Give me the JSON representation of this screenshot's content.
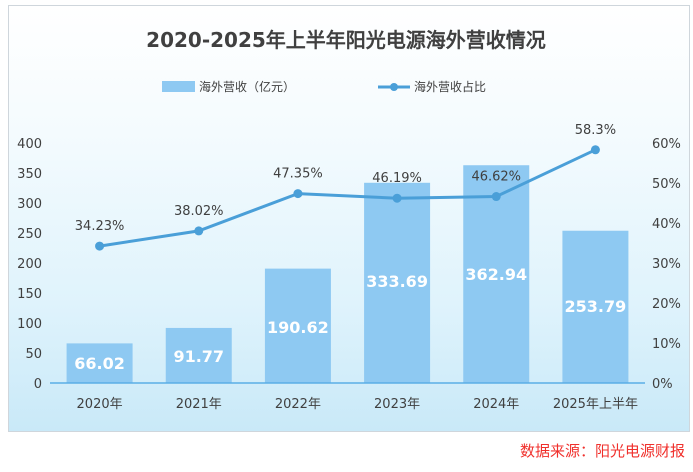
{
  "chart_data": {
    "type": "bar+line",
    "title": "2020-2025年上半年阳光电源海外营收情况",
    "categories": [
      "2020年",
      "2021年",
      "2022年",
      "2023年",
      "2024年",
      "2025年上半年"
    ],
    "series": [
      {
        "name": "海外营收（亿元）",
        "type": "bar",
        "axis": "left",
        "values": [
          66.02,
          91.77,
          190.62,
          333.69,
          362.94,
          253.79
        ],
        "labels": [
          "66.02",
          "91.77",
          "190.62",
          "333.69",
          "362.94",
          "253.79"
        ],
        "color": "#8ec9f2"
      },
      {
        "name": "海外营收占比",
        "type": "line",
        "axis": "right",
        "values": [
          34.23,
          38.02,
          47.35,
          46.19,
          46.62,
          58.3
        ],
        "labels": [
          "34.23%",
          "38.02%",
          "47.35%",
          "46.19%",
          "46.62%",
          "58.3%"
        ],
        "color": "#4a9fd8"
      }
    ],
    "left_axis": {
      "ylim": [
        0,
        400
      ],
      "ticks": [
        "0",
        "50",
        "100",
        "150",
        "200",
        "250",
        "300",
        "350",
        "400"
      ]
    },
    "right_axis": {
      "ylim": [
        0,
        60
      ],
      "ticks": [
        "0%",
        "10%",
        "20%",
        "30%",
        "40%",
        "50%",
        "60%"
      ]
    },
    "legend": "top-center",
    "grid": false
  },
  "source": "数据来源：阳光电源财报"
}
